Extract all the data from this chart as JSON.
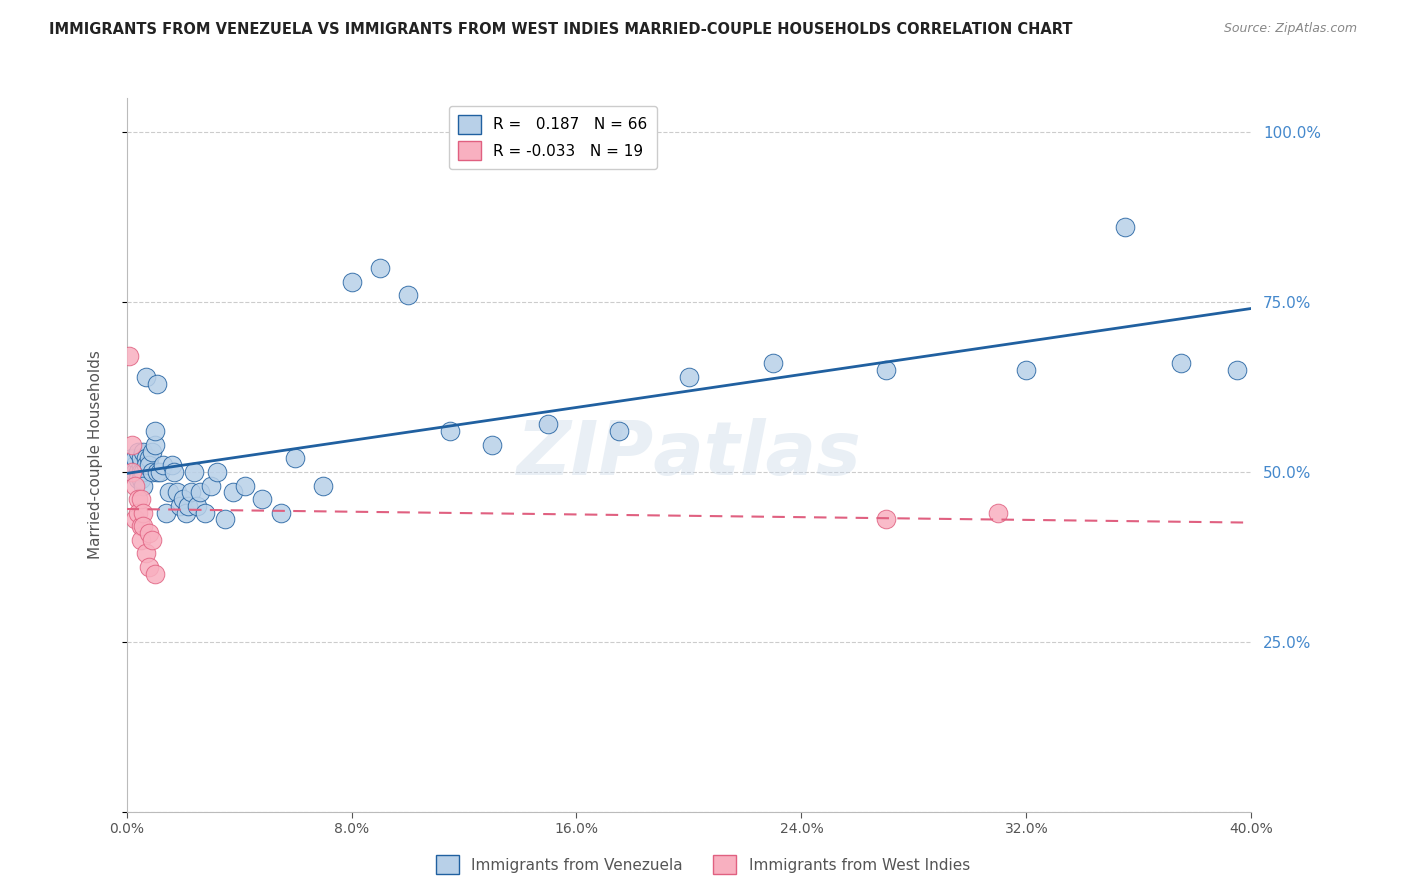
{
  "title": "IMMIGRANTS FROM VENEZUELA VS IMMIGRANTS FROM WEST INDIES MARRIED-COUPLE HOUSEHOLDS CORRELATION CHART",
  "source": "Source: ZipAtlas.com",
  "ylabel_label": "Married-couple Households",
  "blue_label": "Immigrants from Venezuela",
  "pink_label": "Immigrants from West Indies",
  "blue_R": 0.187,
  "pink_R": -0.033,
  "blue_N": 66,
  "pink_N": 19,
  "xlim": [
    0.0,
    0.4
  ],
  "ylim": [
    0.0,
    1.05
  ],
  "yticks": [
    0.0,
    0.25,
    0.5,
    0.75,
    1.0
  ],
  "xticks": [
    0.0,
    0.08,
    0.16,
    0.24,
    0.32,
    0.4
  ],
  "blue_color": "#b8d0e8",
  "blue_line_color": "#2060a0",
  "pink_color": "#f8b0c0",
  "pink_line_color": "#e06080",
  "blue_x": [
    0.001,
    0.002,
    0.002,
    0.003,
    0.003,
    0.003,
    0.004,
    0.004,
    0.004,
    0.005,
    0.005,
    0.005,
    0.005,
    0.006,
    0.006,
    0.006,
    0.007,
    0.007,
    0.007,
    0.008,
    0.008,
    0.009,
    0.009,
    0.01,
    0.01,
    0.011,
    0.011,
    0.012,
    0.013,
    0.014,
    0.015,
    0.016,
    0.017,
    0.018,
    0.019,
    0.02,
    0.021,
    0.022,
    0.023,
    0.024,
    0.025,
    0.026,
    0.028,
    0.03,
    0.032,
    0.035,
    0.038,
    0.042,
    0.048,
    0.055,
    0.06,
    0.07,
    0.08,
    0.09,
    0.1,
    0.115,
    0.13,
    0.15,
    0.175,
    0.2,
    0.23,
    0.27,
    0.32,
    0.355,
    0.375,
    0.395
  ],
  "blue_y": [
    0.51,
    0.5,
    0.52,
    0.51,
    0.5,
    0.52,
    0.5,
    0.53,
    0.49,
    0.51,
    0.5,
    0.52,
    0.49,
    0.53,
    0.5,
    0.48,
    0.52,
    0.64,
    0.51,
    0.52,
    0.51,
    0.53,
    0.5,
    0.54,
    0.56,
    0.5,
    0.63,
    0.5,
    0.51,
    0.44,
    0.47,
    0.51,
    0.5,
    0.47,
    0.45,
    0.46,
    0.44,
    0.45,
    0.47,
    0.5,
    0.45,
    0.47,
    0.44,
    0.48,
    0.5,
    0.43,
    0.47,
    0.48,
    0.46,
    0.44,
    0.52,
    0.48,
    0.78,
    0.8,
    0.76,
    0.56,
    0.54,
    0.57,
    0.56,
    0.64,
    0.66,
    0.65,
    0.65,
    0.86,
    0.66,
    0.65
  ],
  "pink_x": [
    0.001,
    0.002,
    0.002,
    0.003,
    0.003,
    0.004,
    0.004,
    0.005,
    0.005,
    0.005,
    0.006,
    0.006,
    0.007,
    0.008,
    0.008,
    0.009,
    0.01,
    0.27,
    0.31
  ],
  "pink_y": [
    0.67,
    0.54,
    0.5,
    0.48,
    0.43,
    0.46,
    0.44,
    0.46,
    0.42,
    0.4,
    0.44,
    0.42,
    0.38,
    0.41,
    0.36,
    0.4,
    0.35,
    0.43,
    0.44
  ]
}
